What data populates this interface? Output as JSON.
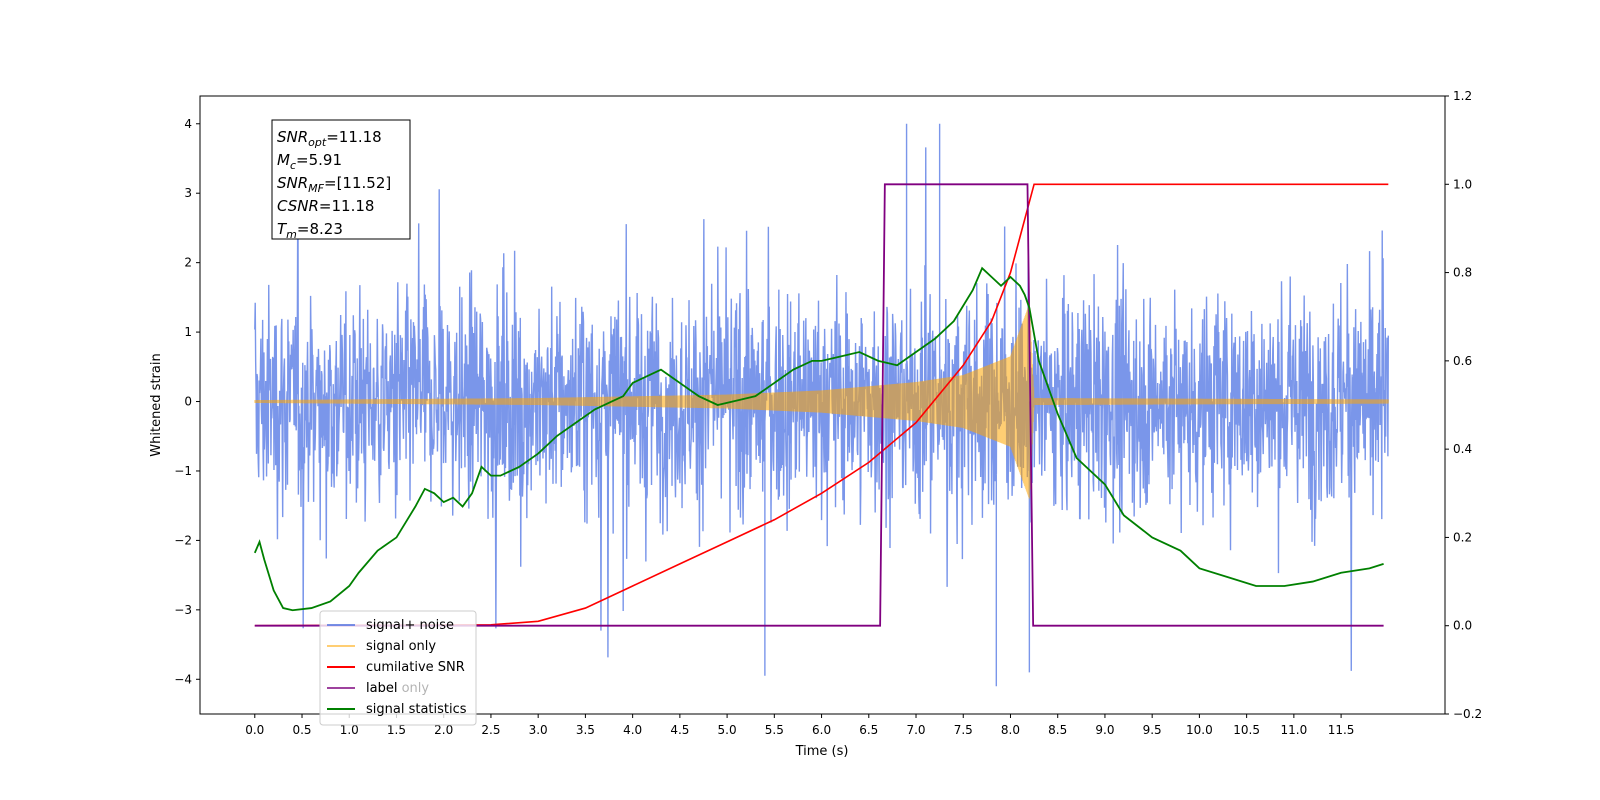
{
  "chart_data": {
    "type": "line",
    "title": "",
    "xlabel": "Time (s)",
    "ylabel": "Whitened strain",
    "y2label": "",
    "xlim": [
      -0.58,
      12.6
    ],
    "ylim": [
      -4.5,
      4.4
    ],
    "y2lim": [
      -0.2,
      1.2
    ],
    "x_ticks": [
      "0.0",
      "0.5",
      "1.0",
      "1.5",
      "2.0",
      "2.5",
      "3.0",
      "3.5",
      "4.0",
      "4.5",
      "5.0",
      "5.5",
      "6.0",
      "6.5",
      "7.0",
      "7.5",
      "8.0",
      "8.5",
      "9.0",
      "9.5",
      "10.0",
      "10.5",
      "11.0",
      "11.5"
    ],
    "y_ticks": [
      "4",
      "3",
      "2",
      "1",
      "0",
      "−1",
      "−2",
      "−3",
      "−4"
    ],
    "y2_ticks": [
      "1.2",
      "1.0",
      "0.8",
      "0.6",
      "0.4",
      "0.2",
      "0.0",
      "−0.2"
    ],
    "grid": false,
    "legend_position": "lower-left",
    "stats": [
      {
        "name": "SNR",
        "sub": "opt",
        "value": "=11.18"
      },
      {
        "name": "M",
        "sub": "c",
        "value": "=5.91"
      },
      {
        "name": "SNR",
        "sub": "MF",
        "value": "=[11.52]"
      },
      {
        "name": "CSNR",
        "sub": "",
        "value": "=11.18"
      },
      {
        "name": "T",
        "sub": "m",
        "value": "=8.23"
      }
    ],
    "series": [
      {
        "name": "signal+ noise",
        "axis": "left",
        "color": "#4169e1",
        "description": "noisy whitened strain spanning roughly -4.1 to 4.0, x from 0 to 12",
        "x_range": [
          0,
          12
        ],
        "typical_amplitude": 1.6,
        "peaks": [
          [
            5.4,
            -3.95
          ],
          [
            7.25,
            4.0
          ],
          [
            7.85,
            -4.1
          ],
          [
            6.9,
            4.0
          ],
          [
            8.2,
            -3.9
          ]
        ]
      },
      {
        "name": "signal only",
        "axis": "left",
        "color": "#ffa500",
        "description": "chirp signal growing in amplitude, peaking near t=8.23",
        "x_range": [
          0,
          12
        ],
        "envelope": [
          [
            0,
            0.02
          ],
          [
            3,
            0.05
          ],
          [
            5,
            0.1
          ],
          [
            6,
            0.16
          ],
          [
            7,
            0.28
          ],
          [
            7.5,
            0.38
          ],
          [
            8,
            0.65
          ],
          [
            8.2,
            1.4
          ],
          [
            8.25,
            0.05
          ],
          [
            12,
            0.03
          ]
        ]
      },
      {
        "name": "cumilative SNR",
        "axis": "right",
        "color": "#ff0000",
        "x": [
          0,
          2.5,
          3.0,
          3.5,
          4.0,
          4.5,
          5.0,
          5.5,
          6.0,
          6.5,
          7.0,
          7.5,
          7.8,
          8.0,
          8.1,
          8.2,
          8.25,
          12
        ],
        "y": [
          0,
          0.002,
          0.01,
          0.04,
          0.09,
          0.14,
          0.19,
          0.24,
          0.3,
          0.37,
          0.46,
          0.59,
          0.69,
          0.8,
          0.88,
          0.96,
          1.0,
          1.0
        ]
      },
      {
        "name": "label",
        "axis": "right",
        "color": "#800080",
        "x": [
          0,
          6.62,
          6.67,
          8.18,
          8.24,
          11.95
        ],
        "y": [
          0,
          0,
          1,
          1,
          0,
          0
        ]
      },
      {
        "name": "label only",
        "axis": "right",
        "color": "#d8bfd8",
        "hidden": true
      },
      {
        "name": "signal statistics",
        "axis": "right",
        "color": "#008000",
        "x": [
          0,
          0.05,
          0.1,
          0.2,
          0.3,
          0.4,
          0.6,
          0.8,
          1.0,
          1.1,
          1.3,
          1.5,
          1.7,
          1.8,
          1.9,
          2.0,
          2.1,
          2.2,
          2.3,
          2.4,
          2.5,
          2.6,
          2.8,
          3.0,
          3.2,
          3.4,
          3.6,
          3.8,
          3.9,
          4.0,
          4.2,
          4.3,
          4.5,
          4.7,
          4.9,
          5.1,
          5.3,
          5.5,
          5.7,
          5.9,
          6.0,
          6.2,
          6.4,
          6.6,
          6.8,
          7.0,
          7.2,
          7.4,
          7.6,
          7.7,
          7.8,
          7.9,
          8.0,
          8.1,
          8.15,
          8.2,
          8.3,
          8.5,
          8.7,
          9.0,
          9.2,
          9.5,
          9.8,
          10.0,
          10.3,
          10.6,
          10.9,
          11.2,
          11.5,
          11.8,
          11.95
        ],
        "y": [
          0.165,
          0.19,
          0.15,
          0.08,
          0.04,
          0.035,
          0.04,
          0.055,
          0.09,
          0.12,
          0.17,
          0.2,
          0.27,
          0.31,
          0.3,
          0.28,
          0.29,
          0.27,
          0.3,
          0.36,
          0.34,
          0.34,
          0.36,
          0.39,
          0.43,
          0.46,
          0.49,
          0.51,
          0.52,
          0.55,
          0.57,
          0.58,
          0.55,
          0.52,
          0.5,
          0.51,
          0.52,
          0.55,
          0.58,
          0.6,
          0.6,
          0.61,
          0.62,
          0.6,
          0.59,
          0.62,
          0.65,
          0.69,
          0.76,
          0.81,
          0.79,
          0.77,
          0.79,
          0.77,
          0.75,
          0.72,
          0.6,
          0.48,
          0.38,
          0.32,
          0.25,
          0.2,
          0.17,
          0.13,
          0.11,
          0.09,
          0.09,
          0.1,
          0.12,
          0.13,
          0.14
        ]
      }
    ]
  }
}
